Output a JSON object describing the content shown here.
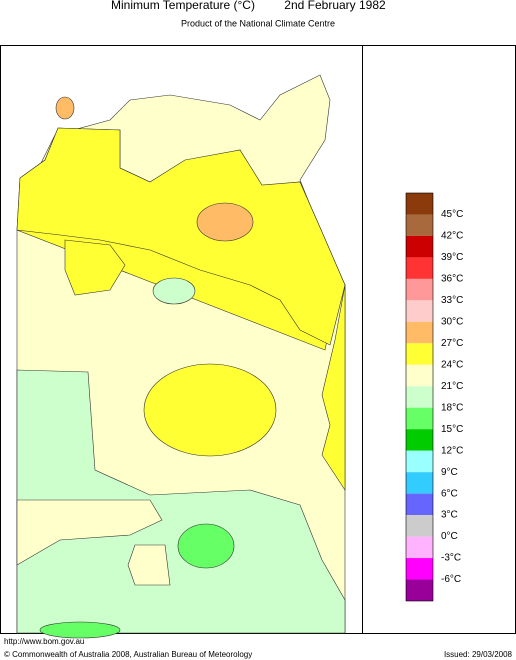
{
  "header": {
    "title": "Minimum Temperature (°C)",
    "date": "2nd February 1982",
    "subtitle": "Product of the National Climate Centre"
  },
  "legend": {
    "labels": [
      "45°C",
      "42°C",
      "39°C",
      "36°C",
      "33°C",
      "30°C",
      "27°C",
      "24°C",
      "21°C",
      "18°C",
      "15°C",
      "12°C",
      "9°C",
      "6°C",
      "3°C",
      "0°C",
      "-3°C",
      "-6°C"
    ],
    "colors": [
      "#8b3a0c",
      "#a86a3c",
      "#cc0000",
      "#ff3333",
      "#ff9999",
      "#ffcccc",
      "#ffbb66",
      "#ffff33",
      "#ffffcc",
      "#ccffcc",
      "#66ff66",
      "#00cc00",
      "#99ffff",
      "#33ccff",
      "#6666ff",
      "#cccccc",
      "#ffb3ff",
      "#ff00ff",
      "#990099"
    ]
  },
  "footer": {
    "url": "http://www.bom.gov.au",
    "copyright": "© Commonwealth of Australia 2008, Australian Bureau of Meteorology",
    "issued": "Issued: 29/03/2008"
  }
}
